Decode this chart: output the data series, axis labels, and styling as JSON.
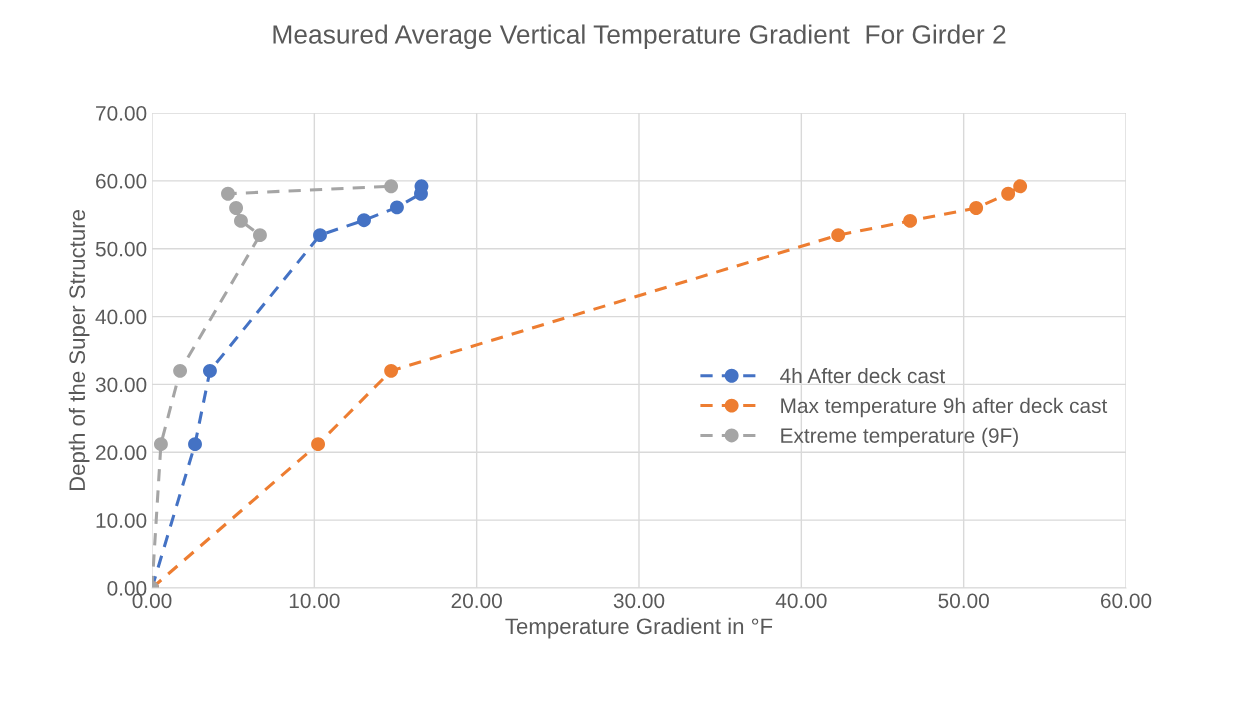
{
  "chart_data": {
    "type": "line",
    "title": "Measured Average Vertical Temperature Gradient  For Girder 2",
    "xlabel": "Temperature Gradient in °F",
    "ylabel": "Depth of the Super Structure",
    "series": [
      {
        "name": "4h After deck cast",
        "color": "#4472c4",
        "x": [
          0,
          2.65,
          3.57,
          10.35,
          13.06,
          15.09,
          16.57,
          16.6
        ],
        "values": [
          0,
          21.2,
          32.0,
          52.0,
          54.2,
          56.1,
          58.1,
          59.2
        ]
      },
      {
        "name": "Max temperature 9h after deck cast",
        "color": "#ed7d31",
        "x": [
          0,
          10.23,
          14.73,
          42.27,
          46.7,
          50.77,
          52.74,
          53.48
        ],
        "values": [
          0,
          21.2,
          32.0,
          52.0,
          54.1,
          56.0,
          58.1,
          59.2
        ]
      },
      {
        "name": "Extreme temperature (9F)",
        "color": "#a5a5a5",
        "x": [
          0,
          0.55,
          1.73,
          6.65,
          5.48,
          5.18,
          4.68,
          14.73
        ],
        "values": [
          0,
          21.2,
          32.0,
          52.0,
          54.1,
          56.0,
          58.1,
          59.2
        ]
      }
    ],
    "xlim": [
      0,
      60
    ],
    "xticks": [
      {
        "value": 0,
        "label": "0.00"
      },
      {
        "value": 10,
        "label": "10.00"
      },
      {
        "value": 20,
        "label": "20.00"
      },
      {
        "value": 30,
        "label": "30.00"
      },
      {
        "value": 40,
        "label": "40.00"
      },
      {
        "value": 50,
        "label": "50.00"
      },
      {
        "value": 60,
        "label": "60.00"
      }
    ],
    "ylim": [
      0,
      70
    ],
    "yticks": [
      {
        "value": 0,
        "label": "0.00"
      },
      {
        "value": 10,
        "label": "10.00"
      },
      {
        "value": 20,
        "label": "20.00"
      },
      {
        "value": 30,
        "label": "30.00"
      },
      {
        "value": 40,
        "label": "40.00"
      },
      {
        "value": 50,
        "label": "50.00"
      },
      {
        "value": 60,
        "label": "60.00"
      },
      {
        "value": 70,
        "label": "70.00"
      }
    ],
    "grid": true,
    "legend": "right",
    "marker": "circle",
    "line_style": "dashed"
  }
}
